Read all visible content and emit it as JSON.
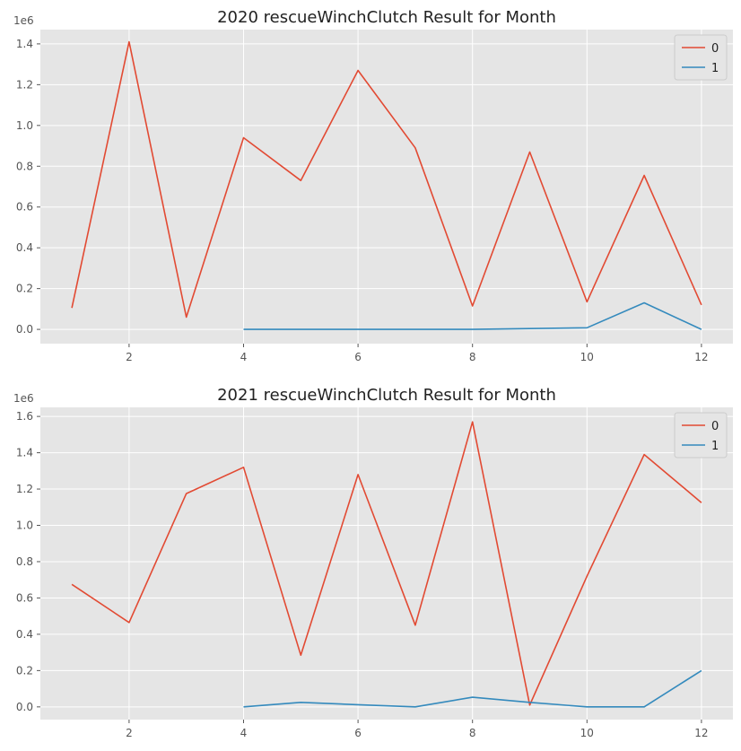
{
  "chart_data": [
    {
      "type": "line",
      "title": "2020 rescueWinchClutch Result for Month",
      "xlabel": "",
      "ylabel": "",
      "y_offset_label": "1e6",
      "xlim": [
        0.45,
        12.55
      ],
      "ylim": [
        -0.07,
        1.47
      ],
      "xticks": [
        2,
        4,
        6,
        8,
        10,
        12
      ],
      "yticks": [
        0.0,
        0.2,
        0.4,
        0.6,
        0.8,
        1.0,
        1.2,
        1.4
      ],
      "grid": true,
      "legend": "top-right",
      "series": [
        {
          "name": "0",
          "color": "#e24a33",
          "x": [
            1,
            2,
            3,
            4,
            5,
            6,
            7,
            8,
            9,
            10,
            11,
            12
          ],
          "values": [
            0.105,
            1.41,
            0.06,
            0.94,
            0.73,
            1.27,
            0.89,
            0.115,
            0.87,
            0.135,
            0.755,
            0.12
          ]
        },
        {
          "name": "1",
          "color": "#348abd",
          "x": [
            4,
            5,
            6,
            7,
            8,
            9,
            10,
            11,
            12
          ],
          "values": [
            0.0,
            0.0,
            0.0,
            0.0,
            0.0,
            0.004,
            0.008,
            0.13,
            0.0
          ]
        }
      ]
    },
    {
      "type": "line",
      "title": "2021 rescueWinchClutch Result for Month",
      "xlabel": "",
      "ylabel": "",
      "y_offset_label": "1e6",
      "xlim": [
        0.45,
        12.55
      ],
      "ylim": [
        -0.07,
        1.65
      ],
      "xticks": [
        2,
        4,
        6,
        8,
        10,
        12
      ],
      "yticks": [
        0.0,
        0.2,
        0.4,
        0.6,
        0.8,
        1.0,
        1.2,
        1.4,
        1.6
      ],
      "grid": true,
      "legend": "top-right",
      "series": [
        {
          "name": "0",
          "color": "#e24a33",
          "x": [
            1,
            2,
            3,
            4,
            5,
            6,
            7,
            8,
            9,
            10,
            11,
            12
          ],
          "values": [
            0.675,
            0.465,
            1.175,
            1.32,
            0.285,
            1.28,
            0.45,
            1.57,
            0.01,
            0.72,
            1.39,
            1.125
          ]
        },
        {
          "name": "1",
          "color": "#348abd",
          "x": [
            4,
            5,
            6,
            7,
            8,
            9,
            10,
            11,
            12
          ],
          "values": [
            0.0,
            0.025,
            0.012,
            0.0,
            0.053,
            0.025,
            0.0,
            0.0,
            0.2
          ]
        }
      ]
    }
  ]
}
